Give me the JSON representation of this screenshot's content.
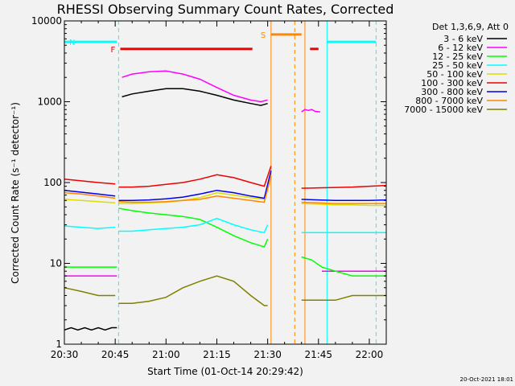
{
  "chart_data": {
    "type": "line",
    "title": "RHESSI Observing Summary Count Rates, Corrected",
    "xlabel": "Start Time (01-Oct-14 20:29:42)",
    "ylabel": "Corrected Count Rate (s⁻¹ detector⁻¹)",
    "x_unit": "minutes after 20:30",
    "xlim": [
      0,
      95
    ],
    "ylim": [
      1,
      10000
    ],
    "yscale": "log",
    "x_ticks": [
      {
        "x": 0,
        "label": "20:30"
      },
      {
        "x": 15,
        "label": "20:45"
      },
      {
        "x": 30,
        "label": "21:00"
      },
      {
        "x": 45,
        "label": "21:15"
      },
      {
        "x": 60,
        "label": "21:30"
      },
      {
        "x": 75,
        "label": "21:45"
      },
      {
        "x": 90,
        "label": "22:00"
      }
    ],
    "y_ticks": [
      {
        "y": 1,
        "label": "1"
      },
      {
        "y": 10,
        "label": "10"
      },
      {
        "y": 100,
        "label": "100"
      },
      {
        "y": 1000,
        "label": "1000"
      },
      {
        "y": 10000,
        "label": "10000"
      }
    ],
    "legend_title": "Det 1,3,6,9, Att 0",
    "legend_position": "right",
    "series": [
      {
        "name": "3 - 6 keV",
        "color": "#000000",
        "segments": [
          {
            "x": [
              0,
              2,
              4,
              6,
              8,
              10,
              12,
              14,
              15.5
            ],
            "y": [
              1.5,
              1.6,
              1.5,
              1.6,
              1.5,
              1.6,
              1.5,
              1.6,
              1.6
            ]
          },
          {
            "x": [
              17,
              20,
              25,
              30,
              35,
              40,
              45,
              50,
              55,
              58,
              60
            ],
            "y": [
              1150,
              1250,
              1350,
              1450,
              1450,
              1350,
              1200,
              1050,
              950,
              900,
              950
            ]
          }
        ]
      },
      {
        "name": "6 - 12 keV",
        "color": "#ff00ff",
        "segments": [
          {
            "x": [
              0,
              5,
              10,
              15.5
            ],
            "y": [
              7,
              7,
              7,
              7
            ]
          },
          {
            "x": [
              17,
              20,
              25,
              30,
              35,
              40,
              45,
              50,
              55,
              58,
              60
            ],
            "y": [
              2000,
              2200,
              2350,
              2400,
              2200,
              1900,
              1500,
              1200,
              1050,
              1000,
              1050
            ]
          },
          {
            "x": [
              70,
              71,
              72,
              73,
              74,
              75.5
            ],
            "y": [
              750,
              800,
              780,
              800,
              760,
              750
            ]
          },
          {
            "x": [
              76,
              80,
              85,
              90,
              95
            ],
            "y": [
              8,
              8,
              8,
              8,
              8
            ]
          }
        ]
      },
      {
        "name": "12 - 25 keV",
        "color": "#00ff00",
        "segments": [
          {
            "x": [
              0,
              5,
              10,
              15.5
            ],
            "y": [
              9,
              9,
              9,
              9
            ]
          },
          {
            "x": [
              16,
              20,
              25,
              30,
              35,
              40,
              45,
              50,
              55,
              59,
              60
            ],
            "y": [
              48,
              45,
              42,
              40,
              38,
              35,
              28,
              22,
              18,
              16,
              20
            ]
          },
          {
            "x": [
              70,
              73,
              76,
              80,
              85,
              90,
              95
            ],
            "y": [
              12,
              11,
              9,
              8,
              7,
              7,
              7
            ]
          }
        ]
      },
      {
        "name": "25 - 50 keV",
        "color": "#00ffff",
        "segments": [
          {
            "x": [
              0,
              5,
              10,
              15
            ],
            "y": [
              29,
              28,
              27,
              28
            ]
          },
          {
            "x": [
              16,
              20,
              25,
              30,
              35,
              40,
              45,
              50,
              55,
              59,
              60
            ],
            "y": [
              25,
              25,
              26,
              27,
              28,
              30,
              36,
              30,
              26,
              24,
              30
            ]
          },
          {
            "x": [
              70,
              75,
              80,
              85,
              90,
              95
            ],
            "y": [
              24,
              24,
              24,
              24,
              24,
              24
            ]
          }
        ]
      },
      {
        "name": "50 - 100 keV",
        "color": "#dddd00",
        "segments": [
          {
            "x": [
              0,
              5,
              10,
              15
            ],
            "y": [
              62,
              60,
              58,
              56
            ]
          },
          {
            "x": [
              16,
              20,
              25,
              30,
              35,
              40,
              45,
              50,
              55,
              59,
              60
            ],
            "y": [
              55,
              55,
              56,
              57,
              60,
              65,
              75,
              70,
              65,
              62,
              80
            ]
          },
          {
            "x": [
              70,
              75,
              80,
              85,
              90,
              95
            ],
            "y": [
              55,
              54,
              53,
              53,
              52,
              52
            ]
          }
        ]
      },
      {
        "name": "100 - 300 keV",
        "color": "#ee0000",
        "segments": [
          {
            "x": [
              0,
              5,
              10,
              15
            ],
            "y": [
              110,
              105,
              100,
              96
            ]
          },
          {
            "x": [
              16,
              20,
              25,
              30,
              35,
              40,
              45,
              50,
              55,
              59,
              61
            ],
            "y": [
              88,
              88,
              90,
              95,
              100,
              110,
              125,
              115,
              100,
              90,
              160
            ]
          },
          {
            "x": [
              70,
              75,
              80,
              85,
              90,
              95
            ],
            "y": [
              85,
              86,
              87,
              88,
              90,
              92
            ]
          }
        ]
      },
      {
        "name": "300 - 800 keV",
        "color": "#0000ee",
        "segments": [
          {
            "x": [
              0,
              5,
              10,
              15
            ],
            "y": [
              80,
              76,
              72,
              68
            ]
          },
          {
            "x": [
              16,
              20,
              25,
              30,
              35,
              40,
              45,
              50,
              55,
              59,
              61
            ],
            "y": [
              60,
              60,
              61,
              63,
              66,
              72,
              80,
              75,
              68,
              64,
              140
            ]
          },
          {
            "x": [
              70,
              75,
              80,
              85,
              90,
              95
            ],
            "y": [
              62,
              61,
              60,
              60,
              60,
              61
            ]
          }
        ]
      },
      {
        "name": "800 - 7000 keV",
        "color": "#ff8800",
        "segments": [
          {
            "x": [
              0,
              5,
              10,
              15
            ],
            "y": [
              75,
              72,
              68,
              64
            ]
          },
          {
            "x": [
              16,
              20,
              25,
              30,
              35,
              40,
              45,
              50,
              55,
              59,
              61
            ],
            "y": [
              58,
              57,
              57,
              58,
              60,
              62,
              68,
              64,
              60,
              57,
              120
            ]
          },
          {
            "x": [
              70,
              75,
              80,
              85,
              90,
              95
            ],
            "y": [
              57,
              56,
              55,
              55,
              55,
              55
            ]
          }
        ]
      },
      {
        "name": "7000 - 15000 keV",
        "color": "#808000",
        "segments": [
          {
            "x": [
              0,
              5,
              10,
              15
            ],
            "y": [
              5,
              4.5,
              4,
              4
            ]
          },
          {
            "x": [
              16,
              20,
              25,
              30,
              35,
              40,
              45,
              50,
              55,
              59,
              60
            ],
            "y": [
              3.2,
              3.2,
              3.4,
              3.8,
              5,
              6,
              7,
              6,
              4,
              3,
              3
            ]
          },
          {
            "x": [
              70,
              75,
              80,
              85,
              90,
              95
            ],
            "y": [
              3.5,
              3.5,
              3.5,
              4,
              4,
              4
            ]
          }
        ]
      }
    ],
    "state_bars": [
      {
        "label": "N",
        "color": "#00ffff",
        "y": 5500,
        "x": [
          [
            0,
            15.5
          ],
          [
            77.5,
            92
          ]
        ]
      },
      {
        "label": "F",
        "color": "#ee0000",
        "y": 4500,
        "x": [
          [
            16.5,
            55.5
          ],
          [
            72.5,
            75
          ]
        ]
      },
      {
        "label": "S",
        "color": "#ff8800",
        "y": 6800,
        "x": [
          [
            61,
            70
          ]
        ]
      }
    ],
    "vertical_lines": [
      {
        "x": 0,
        "color": "#00ffff",
        "style": "solid"
      },
      {
        "x": 16,
        "color": "#00ffff",
        "style": "dashed"
      },
      {
        "x": 61,
        "color": "#ff8800",
        "style": "solid"
      },
      {
        "x": 68,
        "color": "#ff8800",
        "style": "dashed"
      },
      {
        "x": 71,
        "color": "#ff8800",
        "style": "solid"
      },
      {
        "x": 77.5,
        "color": "#00ffff",
        "style": "solid"
      },
      {
        "x": 92,
        "color": "#00ffff",
        "style": "dashed"
      }
    ],
    "stamp": "20-Oct-2021 18:01"
  }
}
